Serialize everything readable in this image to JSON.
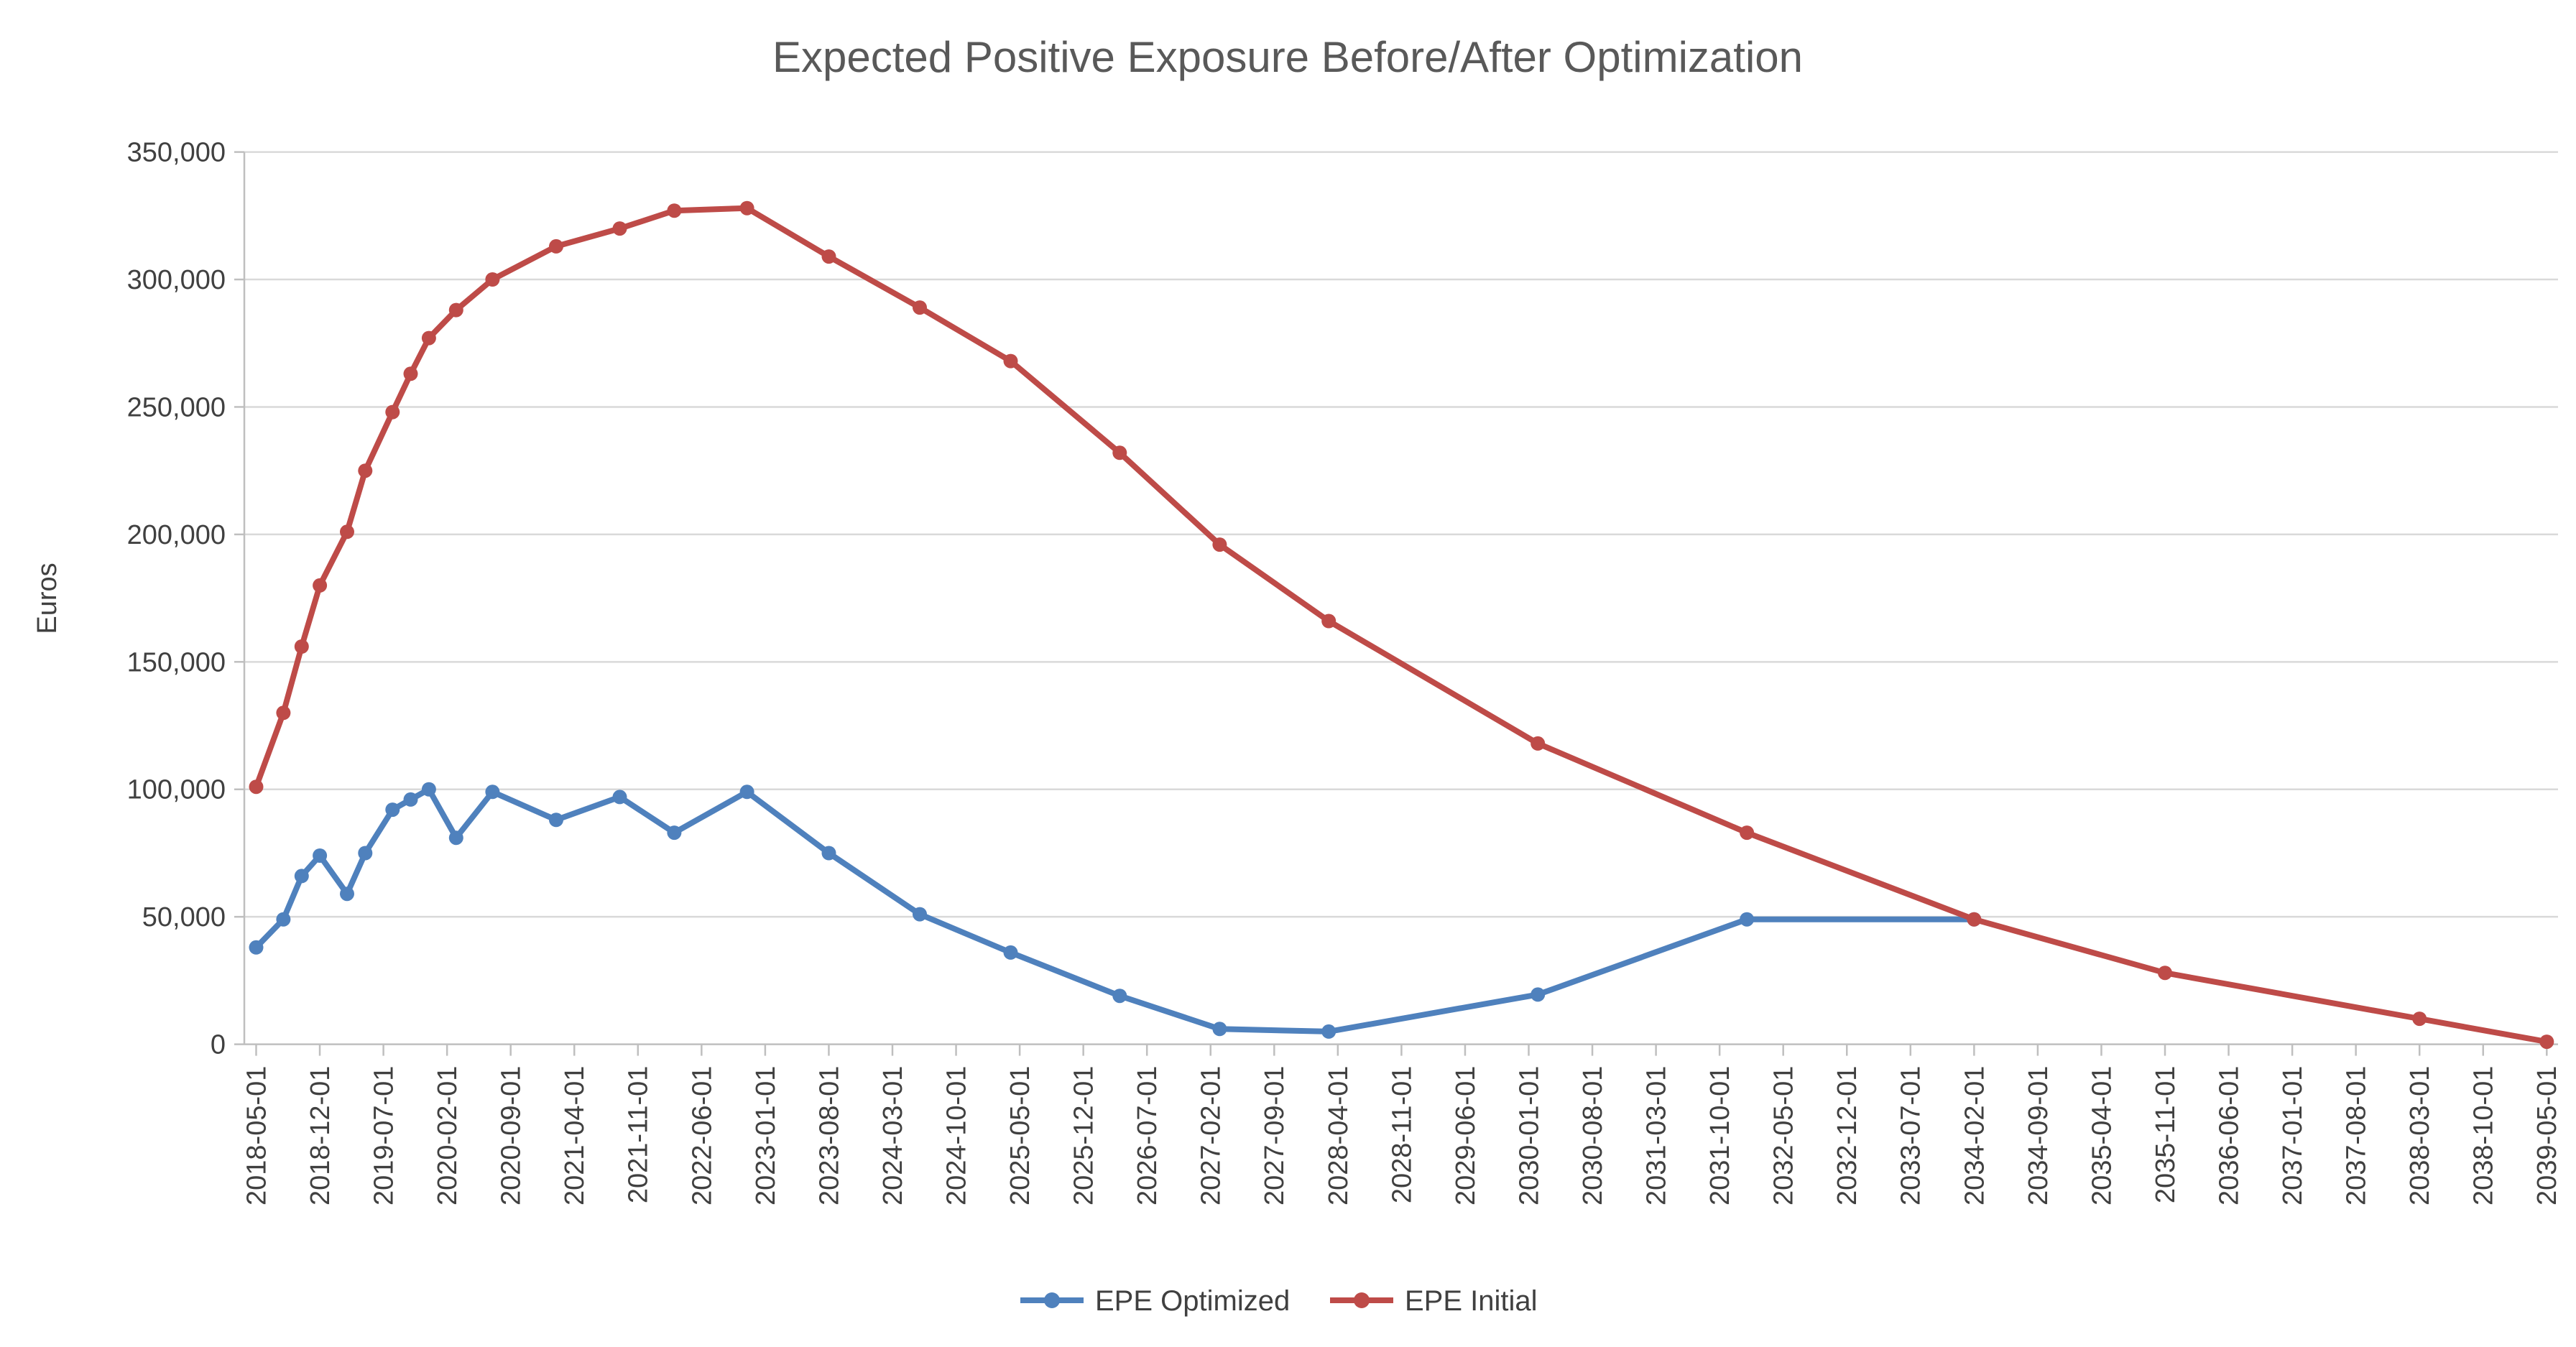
{
  "chart_data": {
    "type": "line",
    "title": "Expected Positive Exposure Before/After Optimization",
    "xlabel": "",
    "ylabel": "Euros",
    "ylim": [
      0,
      350000
    ],
    "ytick_step": 50000,
    "ytick_labels": [
      "0",
      "50,000",
      "100,000",
      "150,000",
      "200,000",
      "250,000",
      "300,000",
      "350,000"
    ],
    "grid": "horizontal",
    "legend_position": "bottom-center",
    "background_color": "#ffffff",
    "gridline_color": "#d9d9d9",
    "axis_color": "#bfbfbf",
    "title_color": "#595959",
    "label_color": "#404040",
    "x_tick_labels": [
      "2018-05-01",
      "2018-12-01",
      "2019-07-01",
      "2020-02-01",
      "2020-09-01",
      "2021-04-01",
      "2021-11-01",
      "2022-06-01",
      "2023-01-01",
      "2023-08-01",
      "2024-03-01",
      "2024-10-01",
      "2025-05-01",
      "2025-12-01",
      "2026-07-01",
      "2027-02-01",
      "2027-09-01",
      "2028-04-01",
      "2028-11-01",
      "2029-06-01",
      "2030-01-01",
      "2030-08-01",
      "2031-03-01",
      "2031-10-01",
      "2032-05-01",
      "2032-12-01",
      "2033-07-01",
      "2034-02-01",
      "2034-09-01",
      "2035-04-01",
      "2035-11-01",
      "2036-06-01",
      "2037-01-01",
      "2037-08-01",
      "2038-03-01",
      "2038-10-01",
      "2039-05-01"
    ],
    "x": [
      "2018-05-01",
      "2018-08-01",
      "2018-10-01",
      "2018-12-01",
      "2019-03-01",
      "2019-05-01",
      "2019-08-01",
      "2019-10-01",
      "2019-12-01",
      "2020-03-01",
      "2020-07-01",
      "2021-02-01",
      "2021-09-01",
      "2022-03-01",
      "2022-11-01",
      "2023-08-01",
      "2024-06-01",
      "2025-04-01",
      "2026-04-01",
      "2027-03-01",
      "2028-03-01",
      "2030-02-01",
      "2032-01-01",
      "2034-02-01",
      "2035-11-01",
      "2038-03-01",
      "2039-05-01"
    ],
    "series": [
      {
        "name": "EPE Optimized",
        "color": "#4f81bd",
        "marker": "circle",
        "values": [
          38000,
          49000,
          66000,
          74000,
          59000,
          75000,
          92000,
          96000,
          100000,
          81000,
          99000,
          88000,
          97000,
          83000,
          99000,
          75000,
          51000,
          36000,
          19000,
          6000,
          5000,
          19500,
          49000,
          49000,
          null,
          null,
          null
        ]
      },
      {
        "name": "EPE Initial",
        "color": "#be4b48",
        "marker": "circle",
        "values": [
          101000,
          130000,
          156000,
          180000,
          201000,
          225000,
          248000,
          263000,
          277000,
          288000,
          300000,
          313000,
          320000,
          327000,
          328000,
          309000,
          289000,
          268000,
          232000,
          196000,
          166000,
          118000,
          83000,
          49000,
          28000,
          10000,
          1000
        ]
      }
    ]
  }
}
